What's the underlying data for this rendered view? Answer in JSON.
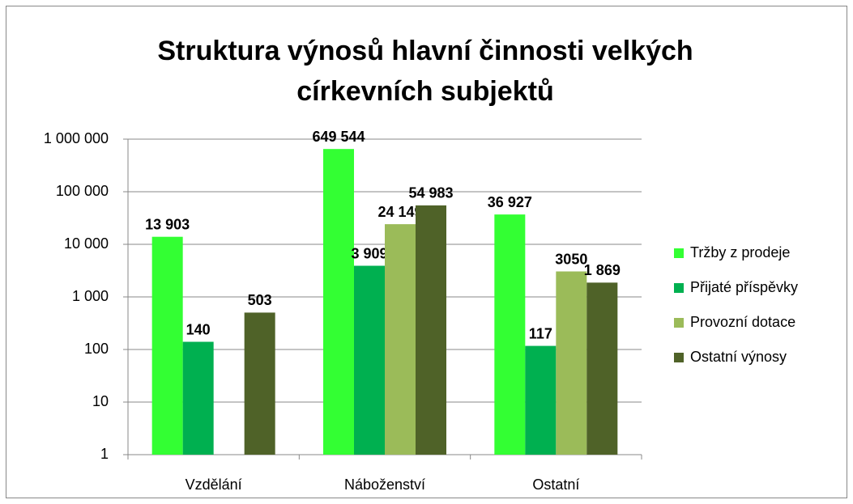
{
  "chart_data": {
    "type": "bar",
    "title": "Struktura výnosů hlavní činnosti velkých církevních subjektů",
    "categories": [
      "Vzdělání",
      "Náboženství",
      "Ostatní"
    ],
    "series": [
      {
        "name": "Tržby z prodeje",
        "color": "#33ff33",
        "values": [
          13903,
          649544,
          36927
        ],
        "value_labels": [
          "13 903",
          "649 544",
          "36 927"
        ]
      },
      {
        "name": "Přijaté příspěvky",
        "color": "#00b050",
        "values": [
          140,
          3909,
          117
        ],
        "value_labels": [
          "140",
          "3 909",
          "117"
        ]
      },
      {
        "name": "Provozní dotace",
        "color": "#9bbb59",
        "values": [
          null,
          24149,
          3050
        ],
        "value_labels": [
          null,
          "24 149",
          "3050"
        ]
      },
      {
        "name": "Ostatní výnosy",
        "color": "#4f6228",
        "values": [
          503,
          54983,
          1869
        ],
        "value_labels": [
          "503",
          "54 983",
          "1 869"
        ]
      }
    ],
    "log_scale": true,
    "ylim": [
      1,
      1000000
    ],
    "yticks": [
      1,
      10,
      100,
      {
        "value": 1000,
        "label": "1 000"
      },
      {
        "value": 10000,
        "label": "10 000"
      },
      {
        "value": 100000,
        "label": "100 000"
      },
      {
        "value": 1000000,
        "label": "1 000 000"
      }
    ],
    "grid": true,
    "legend": "right"
  }
}
